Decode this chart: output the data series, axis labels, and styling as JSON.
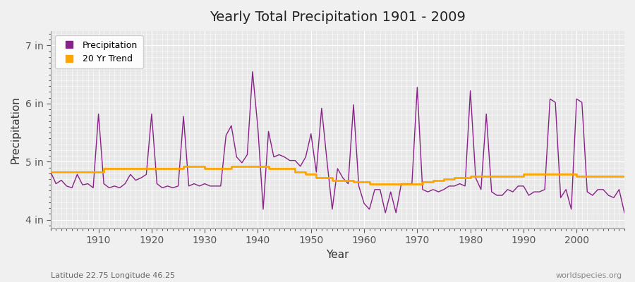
{
  "title": "Yearly Total Precipitation 1901 - 2009",
  "xlabel": "Year",
  "ylabel": "Precipitation",
  "footnote_left": "Latitude 22.75 Longitude 46.25",
  "footnote_right": "worldspecies.org",
  "legend_entries": [
    "Precipitation",
    "20 Yr Trend"
  ],
  "precip_color": "#882288",
  "trend_color": "#FFA500",
  "bg_color": "#F0F0F0",
  "plot_bg_color": "#E8E8E8",
  "grid_color": "#FFFFFF",
  "ylim_min": 3.85,
  "ylim_max": 7.25,
  "yticks": [
    4,
    5,
    6,
    7
  ],
  "ytick_labels": [
    "4 in",
    "5 in",
    "6 in",
    "7 in"
  ],
  "years": [
    1901,
    1902,
    1903,
    1904,
    1905,
    1906,
    1907,
    1908,
    1909,
    1910,
    1911,
    1912,
    1913,
    1914,
    1915,
    1916,
    1917,
    1918,
    1919,
    1920,
    1921,
    1922,
    1923,
    1924,
    1925,
    1926,
    1927,
    1928,
    1929,
    1930,
    1931,
    1932,
    1933,
    1934,
    1935,
    1936,
    1937,
    1938,
    1939,
    1940,
    1941,
    1942,
    1943,
    1944,
    1945,
    1946,
    1947,
    1948,
    1949,
    1950,
    1951,
    1952,
    1953,
    1954,
    1955,
    1956,
    1957,
    1958,
    1959,
    1960,
    1961,
    1962,
    1963,
    1964,
    1965,
    1966,
    1967,
    1968,
    1969,
    1970,
    1971,
    1972,
    1973,
    1974,
    1975,
    1976,
    1977,
    1978,
    1979,
    1980,
    1981,
    1982,
    1983,
    1984,
    1985,
    1986,
    1987,
    1988,
    1989,
    1990,
    1991,
    1992,
    1993,
    1994,
    1995,
    1996,
    1997,
    1998,
    1999,
    2000,
    2001,
    2002,
    2003,
    2004,
    2005,
    2006,
    2007,
    2008,
    2009
  ],
  "precip_values": [
    4.82,
    4.62,
    4.68,
    4.58,
    4.55,
    4.78,
    4.6,
    4.62,
    4.55,
    5.82,
    4.62,
    4.55,
    4.58,
    4.55,
    4.62,
    4.78,
    4.68,
    4.72,
    4.78,
    5.82,
    4.62,
    4.55,
    4.58,
    4.55,
    4.58,
    5.78,
    4.58,
    4.62,
    4.58,
    4.62,
    4.58,
    4.58,
    4.58,
    5.45,
    5.62,
    5.08,
    4.98,
    5.12,
    6.55,
    5.58,
    4.18,
    5.52,
    5.08,
    5.12,
    5.08,
    5.02,
    5.02,
    4.92,
    5.08,
    5.48,
    4.82,
    5.92,
    5.02,
    4.18,
    4.88,
    4.72,
    4.62,
    5.98,
    4.58,
    4.28,
    4.18,
    4.52,
    4.52,
    4.12,
    4.48,
    4.12,
    4.62,
    4.62,
    4.62,
    6.28,
    4.52,
    4.48,
    4.52,
    4.48,
    4.52,
    4.58,
    4.58,
    4.62,
    4.58,
    6.22,
    4.72,
    4.52,
    5.82,
    4.48,
    4.42,
    4.42,
    4.52,
    4.48,
    4.58,
    4.58,
    4.42,
    4.48,
    4.48,
    4.52,
    6.08,
    6.02,
    4.38,
    4.52,
    4.18,
    6.08,
    6.02,
    4.48,
    4.42,
    4.52,
    4.52,
    4.42,
    4.38,
    4.52,
    4.12
  ],
  "trend_values": [
    4.82,
    4.82,
    4.82,
    4.82,
    4.82,
    4.82,
    4.82,
    4.82,
    4.82,
    4.82,
    4.88,
    4.88,
    4.88,
    4.88,
    4.88,
    4.88,
    4.88,
    4.88,
    4.88,
    4.88,
    4.88,
    4.88,
    4.88,
    4.88,
    4.88,
    4.92,
    4.92,
    4.92,
    4.92,
    4.88,
    4.88,
    4.88,
    4.88,
    4.88,
    4.92,
    4.92,
    4.92,
    4.92,
    4.92,
    4.92,
    4.92,
    4.88,
    4.88,
    4.88,
    4.88,
    4.88,
    4.82,
    4.82,
    4.78,
    4.78,
    4.72,
    4.72,
    4.72,
    4.68,
    4.68,
    4.68,
    4.68,
    4.65,
    4.65,
    4.65,
    4.62,
    4.62,
    4.62,
    4.62,
    4.62,
    4.62,
    4.62,
    4.62,
    4.62,
    4.62,
    4.65,
    4.65,
    4.68,
    4.68,
    4.7,
    4.7,
    4.72,
    4.72,
    4.72,
    4.75,
    4.75,
    4.75,
    4.75,
    4.75,
    4.75,
    4.75,
    4.75,
    4.75,
    4.75,
    4.78,
    4.78,
    4.78,
    4.78,
    4.78,
    4.78,
    4.78,
    4.78,
    4.78,
    4.78,
    4.75,
    4.75,
    4.75,
    4.75,
    4.75,
    4.75,
    4.75,
    4.75,
    4.75,
    4.75
  ]
}
